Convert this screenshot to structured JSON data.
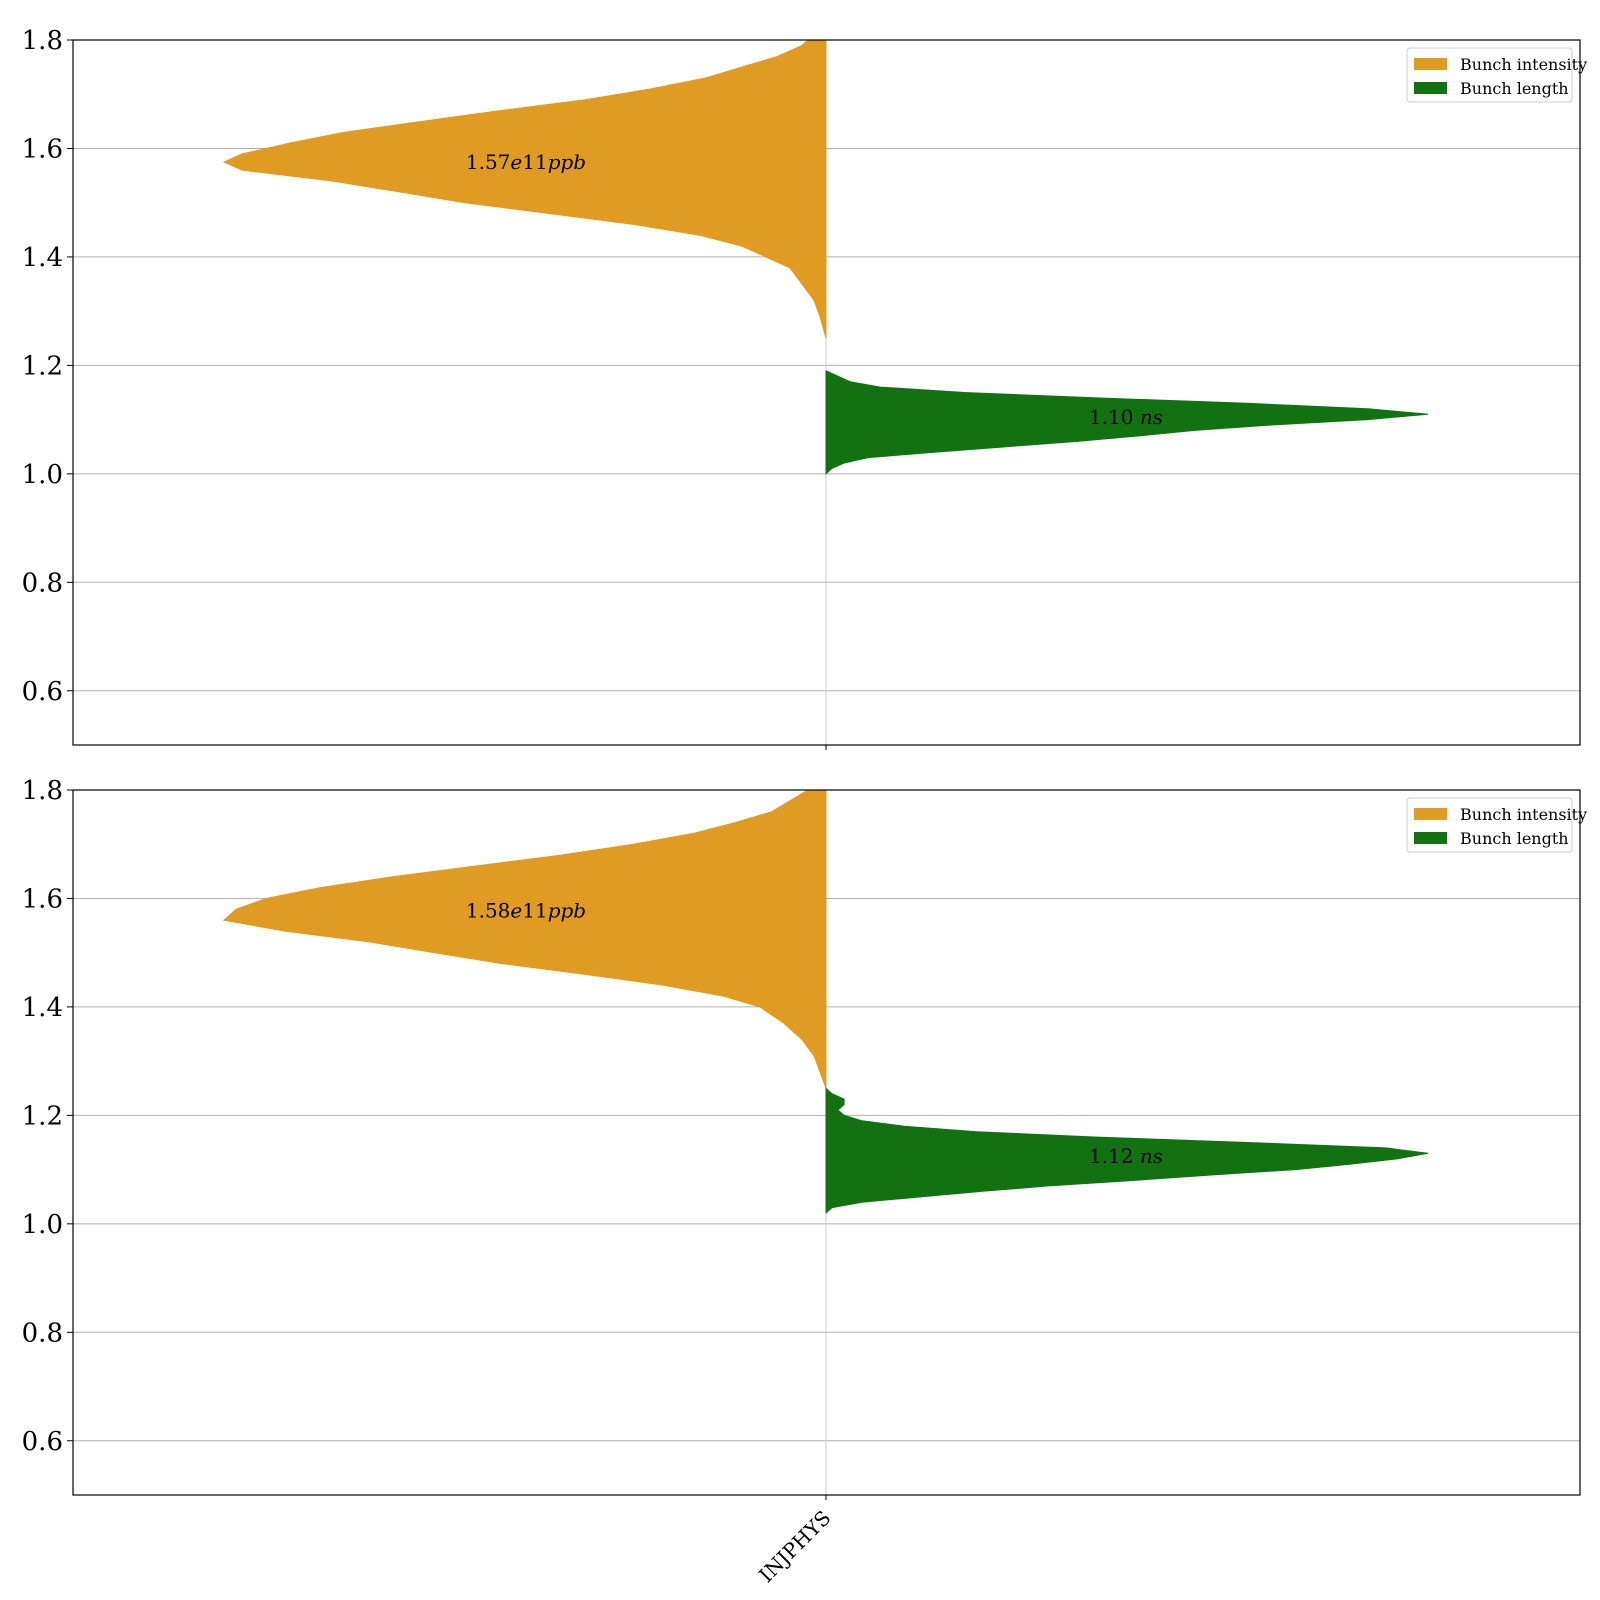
{
  "chart_data": [
    {
      "type": "violin",
      "category": "INJPHYS",
      "ylim": [
        0.5,
        1.8
      ],
      "yticks": [
        "0.6",
        "0.8",
        "1.0",
        "1.2",
        "1.4",
        "1.6",
        "1.8"
      ],
      "grid": true,
      "legend": {
        "placement": "top-right",
        "entries": [
          {
            "label": "Bunch intensity",
            "color": "#e09b22"
          },
          {
            "label": "Bunch length",
            "color": "#127212"
          }
        ]
      },
      "series": [
        {
          "name": "Bunch intensity",
          "side": "left",
          "color": "#e09b22",
          "annotation": {
            "prefix": "1.57",
            "mantissa": "e",
            "exponent": "11",
            "unit": "ppb",
            "y": 1.575
          },
          "profile": [
            [
              1.25,
              0.0
            ],
            [
              1.29,
              0.01
            ],
            [
              1.32,
              0.02
            ],
            [
              1.35,
              0.04
            ],
            [
              1.38,
              0.06
            ],
            [
              1.4,
              0.1
            ],
            [
              1.42,
              0.14
            ],
            [
              1.44,
              0.21
            ],
            [
              1.46,
              0.32
            ],
            [
              1.48,
              0.46
            ],
            [
              1.5,
              0.6
            ],
            [
              1.52,
              0.71
            ],
            [
              1.54,
              0.82
            ],
            [
              1.56,
              0.97
            ],
            [
              1.575,
              1.0
            ],
            [
              1.59,
              0.97
            ],
            [
              1.61,
              0.89
            ],
            [
              1.63,
              0.8
            ],
            [
              1.65,
              0.67
            ],
            [
              1.67,
              0.54
            ],
            [
              1.69,
              0.4
            ],
            [
              1.71,
              0.29
            ],
            [
              1.73,
              0.2
            ],
            [
              1.75,
              0.14
            ],
            [
              1.77,
              0.08
            ],
            [
              1.79,
              0.04
            ],
            [
              1.8,
              0.03
            ]
          ]
        },
        {
          "name": "Bunch length",
          "side": "right",
          "color": "#127212",
          "annotation": {
            "prefix": "1.10",
            "unit": "ns",
            "y": 1.105
          },
          "profile": [
            [
              1.0,
              0.0
            ],
            [
              1.01,
              0.01
            ],
            [
              1.02,
              0.03
            ],
            [
              1.03,
              0.07
            ],
            [
              1.04,
              0.18
            ],
            [
              1.05,
              0.3
            ],
            [
              1.06,
              0.42
            ],
            [
              1.07,
              0.52
            ],
            [
              1.08,
              0.61
            ],
            [
              1.09,
              0.74
            ],
            [
              1.1,
              0.9
            ],
            [
              1.11,
              1.0
            ],
            [
              1.12,
              0.9
            ],
            [
              1.13,
              0.7
            ],
            [
              1.14,
              0.45
            ],
            [
              1.15,
              0.23
            ],
            [
              1.16,
              0.09
            ],
            [
              1.17,
              0.04
            ],
            [
              1.18,
              0.02
            ],
            [
              1.19,
              0.0
            ]
          ]
        }
      ]
    },
    {
      "type": "violin",
      "category": "INJPHYS",
      "ylim": [
        0.5,
        1.8
      ],
      "yticks": [
        "0.6",
        "0.8",
        "1.0",
        "1.2",
        "1.4",
        "1.6",
        "1.8"
      ],
      "grid": true,
      "legend": {
        "placement": "top-right",
        "entries": [
          {
            "label": "Bunch intensity",
            "color": "#e09b22"
          },
          {
            "label": "Bunch length",
            "color": "#127212"
          }
        ]
      },
      "series": [
        {
          "name": "Bunch intensity",
          "side": "left",
          "color": "#e09b22",
          "annotation": {
            "prefix": "1.58",
            "mantissa": "e",
            "exponent": "11",
            "unit": "ppb",
            "y": 1.578
          },
          "profile": [
            [
              1.25,
              0.0
            ],
            [
              1.28,
              0.01
            ],
            [
              1.31,
              0.02
            ],
            [
              1.34,
              0.04
            ],
            [
              1.37,
              0.07
            ],
            [
              1.4,
              0.11
            ],
            [
              1.42,
              0.17
            ],
            [
              1.44,
              0.27
            ],
            [
              1.46,
              0.4
            ],
            [
              1.48,
              0.54
            ],
            [
              1.5,
              0.65
            ],
            [
              1.52,
              0.76
            ],
            [
              1.54,
              0.9
            ],
            [
              1.56,
              1.0
            ],
            [
              1.58,
              0.98
            ],
            [
              1.6,
              0.93
            ],
            [
              1.62,
              0.84
            ],
            [
              1.64,
              0.72
            ],
            [
              1.66,
              0.58
            ],
            [
              1.68,
              0.44
            ],
            [
              1.7,
              0.32
            ],
            [
              1.72,
              0.22
            ],
            [
              1.74,
              0.15
            ],
            [
              1.76,
              0.09
            ],
            [
              1.78,
              0.06
            ],
            [
              1.8,
              0.03
            ]
          ]
        },
        {
          "name": "Bunch length",
          "side": "right",
          "color": "#127212",
          "annotation": {
            "prefix": "1.12",
            "unit": "ns",
            "y": 1.125
          },
          "profile": [
            [
              1.02,
              0.0
            ],
            [
              1.03,
              0.01
            ],
            [
              1.04,
              0.06
            ],
            [
              1.05,
              0.16
            ],
            [
              1.06,
              0.26
            ],
            [
              1.07,
              0.37
            ],
            [
              1.08,
              0.51
            ],
            [
              1.09,
              0.64
            ],
            [
              1.1,
              0.78
            ],
            [
              1.11,
              0.87
            ],
            [
              1.12,
              0.95
            ],
            [
              1.13,
              1.0
            ],
            [
              1.14,
              0.93
            ],
            [
              1.15,
              0.7
            ],
            [
              1.16,
              0.45
            ],
            [
              1.17,
              0.25
            ],
            [
              1.18,
              0.13
            ],
            [
              1.19,
              0.06
            ],
            [
              1.2,
              0.03
            ],
            [
              1.21,
              0.02
            ],
            [
              1.22,
              0.03
            ],
            [
              1.23,
              0.03
            ],
            [
              1.24,
              0.01
            ],
            [
              1.25,
              0.0
            ]
          ]
        }
      ]
    }
  ]
}
